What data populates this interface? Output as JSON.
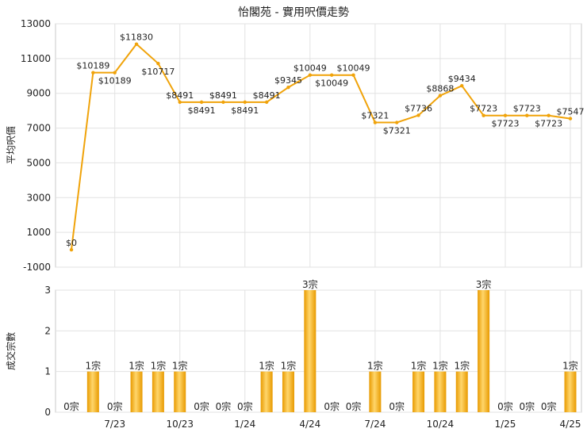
{
  "chart_data": [
    {
      "type": "line",
      "title": "怡閣苑 - 實用呎價走勢",
      "ylabel": "平均呎價",
      "ylim": [
        -1000,
        13000
      ],
      "yticks": [
        13000,
        11000,
        9000,
        7000,
        5000,
        3000,
        1000,
        -1000
      ],
      "x_index": [
        0,
        1,
        2,
        3,
        4,
        5,
        6,
        7,
        8,
        9,
        10,
        11,
        12,
        13,
        14,
        15,
        16,
        17,
        18,
        19,
        20,
        21,
        22,
        23
      ],
      "x_tick_labels": [
        {
          "pos": 2,
          "label": "7/23"
        },
        {
          "pos": 5,
          "label": "10/23"
        },
        {
          "pos": 8,
          "label": "1/24"
        },
        {
          "pos": 11,
          "label": "4/24"
        },
        {
          "pos": 14,
          "label": "7/24"
        },
        {
          "pos": 17,
          "label": "10/24"
        },
        {
          "pos": 20,
          "label": "1/25"
        },
        {
          "pos": 23,
          "label": "4/25"
        }
      ],
      "grid": true,
      "color": "#f0a30a",
      "series": [
        {
          "values": [
            0,
            10189,
            10189,
            11830,
            10717,
            8491,
            8491,
            8491,
            8491,
            8491,
            9345,
            10049,
            10049,
            10049,
            7321,
            7321,
            7736,
            8868,
            9434,
            7723,
            7723,
            7723,
            7723,
            7547
          ],
          "labels": [
            "$0",
            "$10189",
            "$10189",
            "$11830",
            "$10717",
            "$8491",
            "$8491",
            "$8491",
            "$8491",
            "$8491",
            "$9345",
            "$10049",
            "$10049",
            "$10049",
            "$7321",
            "$7321",
            "$7736",
            "$8868",
            "$9434",
            "$7723",
            "$7723",
            "$7723",
            "$7723",
            "$7547"
          ],
          "label_side": [
            "above",
            "above",
            "below",
            "above",
            "below",
            "above",
            "below",
            "above",
            "below",
            "above",
            "above",
            "above",
            "below",
            "above",
            "above",
            "below",
            "above",
            "above",
            "above",
            "above",
            "below",
            "above",
            "below",
            "above"
          ]
        }
      ]
    },
    {
      "type": "bar",
      "ylabel": "成交宗數",
      "ylim": [
        0,
        3
      ],
      "yticks": [
        3,
        2,
        1,
        0
      ],
      "grid": true,
      "color": "#f0a30a",
      "values": [
        0,
        1,
        0,
        1,
        1,
        1,
        0,
        0,
        0,
        1,
        1,
        3,
        0,
        0,
        1,
        0,
        1,
        1,
        1,
        3,
        0,
        0,
        0,
        1
      ],
      "labels": [
        "0宗",
        "1宗",
        "0宗",
        "1宗",
        "1宗",
        "1宗",
        "0宗",
        "0宗",
        "0宗",
        "1宗",
        "1宗",
        "3宗",
        "0宗",
        "0宗",
        "1宗",
        "0宗",
        "1宗",
        "1宗",
        "1宗",
        "3宗",
        "0宗",
        "0宗",
        "0宗",
        "1宗"
      ]
    }
  ]
}
